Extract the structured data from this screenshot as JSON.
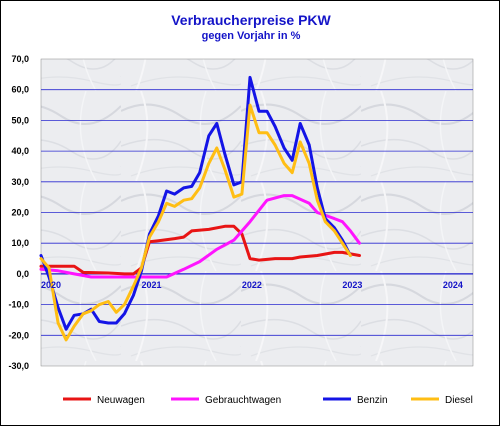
{
  "chart_data": {
    "type": "line",
    "title": "Verbraucherpreise PKW",
    "subtitle": "gegen Vorjahr in %",
    "xlabel": "",
    "ylabel": "",
    "ylim": [
      -30,
      70
    ],
    "yticks": [
      "-30,0",
      "-20,0",
      "-10,0",
      "0,0",
      "10,0",
      "20,0",
      "30,0",
      "40,0",
      "50,0",
      "60,0",
      "70,0"
    ],
    "ytick_values": [
      -30,
      -20,
      -10,
      0,
      10,
      20,
      30,
      40,
      50,
      60,
      70
    ],
    "xlim": [
      2020.0,
      2024.3
    ],
    "xticks": [
      "2020",
      "2021",
      "2022",
      "2023",
      "2024"
    ],
    "xtick_values": [
      2020,
      2021,
      2022,
      2023,
      2024
    ],
    "grid": true,
    "legend_position": "bottom",
    "series": [
      {
        "name": "Neuwagen",
        "color": "#e81414",
        "points": [
          [
            2020.0,
            2.5
          ],
          [
            2020.17,
            2.5
          ],
          [
            2020.33,
            2.5
          ],
          [
            2020.42,
            0.5
          ],
          [
            2020.67,
            0.3
          ],
          [
            2020.83,
            0
          ],
          [
            2020.92,
            0
          ],
          [
            2021.0,
            2
          ],
          [
            2021.08,
            10.5
          ],
          [
            2021.17,
            10.8
          ],
          [
            2021.33,
            11.5
          ],
          [
            2021.42,
            12
          ],
          [
            2021.5,
            14
          ],
          [
            2021.67,
            14.5
          ],
          [
            2021.83,
            15.5
          ],
          [
            2021.92,
            15.5
          ],
          [
            2022.0,
            13
          ],
          [
            2022.08,
            5
          ],
          [
            2022.17,
            4.5
          ],
          [
            2022.33,
            5
          ],
          [
            2022.5,
            5
          ],
          [
            2022.58,
            5.5
          ],
          [
            2022.75,
            6
          ],
          [
            2022.92,
            7
          ],
          [
            2023.0,
            7
          ],
          [
            2023.08,
            6.5
          ],
          [
            2023.17,
            6
          ]
        ]
      },
      {
        "name": "Gebrauchtwagen",
        "color": "#ff14ff",
        "points": [
          [
            2020.0,
            1.5
          ],
          [
            2020.17,
            1
          ],
          [
            2020.33,
            0
          ],
          [
            2020.5,
            -1
          ],
          [
            2020.67,
            -1
          ],
          [
            2020.83,
            -1
          ],
          [
            2021.0,
            -1
          ],
          [
            2021.25,
            -1
          ],
          [
            2021.42,
            1.5
          ],
          [
            2021.58,
            4
          ],
          [
            2021.75,
            8
          ],
          [
            2021.92,
            11
          ],
          [
            2022.08,
            17
          ],
          [
            2022.25,
            24
          ],
          [
            2022.42,
            25.5
          ],
          [
            2022.5,
            25.5
          ],
          [
            2022.67,
            23
          ],
          [
            2022.75,
            20
          ],
          [
            2022.92,
            18
          ],
          [
            2023.0,
            17
          ],
          [
            2023.08,
            14
          ],
          [
            2023.17,
            10
          ]
        ]
      },
      {
        "name": "Benzin",
        "color": "#1414e6",
        "points": [
          [
            2020.0,
            6
          ],
          [
            2020.08,
            -1
          ],
          [
            2020.17,
            -11
          ],
          [
            2020.25,
            -18
          ],
          [
            2020.33,
            -13.5
          ],
          [
            2020.42,
            -13
          ],
          [
            2020.5,
            -11.5
          ],
          [
            2020.58,
            -15.5
          ],
          [
            2020.67,
            -16
          ],
          [
            2020.75,
            -16
          ],
          [
            2020.83,
            -13
          ],
          [
            2020.92,
            -7
          ],
          [
            2021.0,
            1
          ],
          [
            2021.08,
            13
          ],
          [
            2021.17,
            19
          ],
          [
            2021.25,
            27
          ],
          [
            2021.33,
            26
          ],
          [
            2021.42,
            28
          ],
          [
            2021.5,
            28.5
          ],
          [
            2021.58,
            33
          ],
          [
            2021.67,
            45
          ],
          [
            2021.75,
            49
          ],
          [
            2021.83,
            39
          ],
          [
            2021.92,
            29
          ],
          [
            2022.0,
            30
          ],
          [
            2022.08,
            64
          ],
          [
            2022.17,
            53
          ],
          [
            2022.25,
            53
          ],
          [
            2022.33,
            48
          ],
          [
            2022.42,
            41
          ],
          [
            2022.5,
            37
          ],
          [
            2022.58,
            49
          ],
          [
            2022.67,
            42
          ],
          [
            2022.75,
            28
          ],
          [
            2022.83,
            18
          ],
          [
            2022.92,
            15
          ],
          [
            2023.0,
            11
          ],
          [
            2023.08,
            6
          ]
        ]
      },
      {
        "name": "Diesel",
        "color": "#ffbe14",
        "points": [
          [
            2020.0,
            5
          ],
          [
            2020.08,
            2
          ],
          [
            2020.17,
            -16
          ],
          [
            2020.25,
            -21.5
          ],
          [
            2020.33,
            -17
          ],
          [
            2020.42,
            -13
          ],
          [
            2020.5,
            -12
          ],
          [
            2020.58,
            -10
          ],
          [
            2020.67,
            -9
          ],
          [
            2020.75,
            -12.5
          ],
          [
            2020.83,
            -10
          ],
          [
            2020.92,
            -4
          ],
          [
            2021.0,
            2
          ],
          [
            2021.08,
            12
          ],
          [
            2021.17,
            17
          ],
          [
            2021.25,
            23
          ],
          [
            2021.33,
            22
          ],
          [
            2021.42,
            24
          ],
          [
            2021.5,
            24.5
          ],
          [
            2021.58,
            28
          ],
          [
            2021.67,
            36
          ],
          [
            2021.75,
            41
          ],
          [
            2021.83,
            34
          ],
          [
            2021.92,
            25
          ],
          [
            2022.0,
            26
          ],
          [
            2022.08,
            55
          ],
          [
            2022.17,
            46
          ],
          [
            2022.25,
            46
          ],
          [
            2022.33,
            42
          ],
          [
            2022.42,
            36
          ],
          [
            2022.5,
            33
          ],
          [
            2022.58,
            43
          ],
          [
            2022.67,
            36
          ],
          [
            2022.75,
            24
          ],
          [
            2022.83,
            17
          ],
          [
            2022.92,
            14
          ],
          [
            2023.0,
            10
          ],
          [
            2023.08,
            6
          ]
        ]
      }
    ]
  }
}
